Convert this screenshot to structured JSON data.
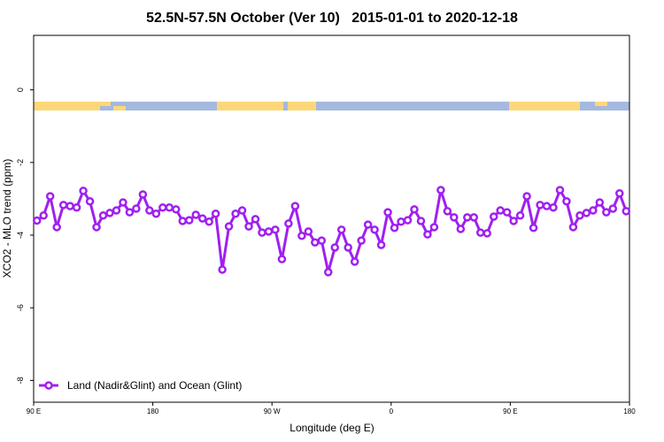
{
  "chart_data": {
    "type": "line",
    "title": "52.5N-57.5N October (Ver 10)   2015-01-01 to 2020-12-18",
    "x_label": "Longitude (deg E)",
    "y_label": "XCO2 - MLO trend (ppm)",
    "x": [
      92.5,
      97.5,
      102.5,
      107.5,
      112.5,
      117.5,
      122.5,
      127.5,
      132.5,
      137.5,
      142.5,
      147.5,
      152.5,
      157.5,
      162.5,
      167.5,
      172.5,
      177.5,
      182.5,
      187.5,
      192.5,
      197.5,
      202.5,
      207.5,
      212.5,
      217.5,
      222.5,
      227.5,
      232.5,
      237.5,
      242.5,
      247.5,
      252.5,
      257.5,
      262.5,
      267.5,
      272.5,
      277.5,
      282.5,
      287.5,
      292.5,
      297.5,
      302.5,
      307.5,
      312.5,
      317.5,
      322.5,
      327.5,
      332.5,
      337.5,
      342.5,
      347.5,
      352.5,
      357.5,
      362.5,
      367.5,
      372.5,
      377.5,
      382.5,
      387.5,
      392.5,
      397.5,
      402.5,
      407.5,
      412.5,
      417.5,
      422.5,
      427.5,
      432.5,
      437.5,
      442.5,
      447.5,
      452.5,
      457.5,
      462.5,
      467.5,
      472.5,
      477.5,
      482.5,
      487.5,
      492.5,
      497.5,
      502.5,
      507.5,
      512.5,
      517.5,
      522.5,
      527.5,
      532.5,
      537.5
    ],
    "series": [
      {
        "name": "Land (Nadir&Glint) and Ocean (Glint)",
        "color": "#a020f0",
        "values": [
          -3.6,
          -3.46,
          -2.93,
          -3.78,
          -3.17,
          -3.2,
          -3.24,
          -2.78,
          -3.07,
          -3.78,
          -3.46,
          -3.39,
          -3.32,
          -3.1,
          -3.37,
          -3.27,
          -2.88,
          -3.32,
          -3.41,
          -3.24,
          -3.24,
          -3.29,
          -3.61,
          -3.59,
          -3.44,
          -3.54,
          -3.63,
          -3.41,
          -4.95,
          -3.76,
          -3.41,
          -3.32,
          -3.76,
          -3.56,
          -3.93,
          -3.9,
          -3.85,
          -4.66,
          -3.68,
          -3.2,
          -4.02,
          -3.9,
          -4.2,
          -4.15,
          -5.02,
          -4.34,
          -3.85,
          -4.34,
          -4.73,
          -4.15,
          -3.71,
          -3.85,
          -4.27,
          -3.37,
          -3.8,
          -3.63,
          -3.59,
          -3.29,
          -3.61,
          -3.98,
          -3.78,
          -2.76,
          -3.34,
          -3.51,
          -3.83,
          -3.51,
          -3.51,
          -3.93,
          -3.95,
          -3.49,
          -3.32,
          -3.37,
          -3.61,
          -3.46,
          -2.93,
          -3.8,
          -3.17,
          -3.2,
          -3.24,
          -2.76,
          -3.07,
          -3.78,
          -3.46,
          -3.39,
          -3.32,
          -3.1,
          -3.37,
          -3.27,
          -2.85,
          -3.34
        ]
      }
    ],
    "xlim": [
      90,
      540
    ],
    "xticks": [
      {
        "value": 90,
        "label": "90 E"
      },
      180,
      {
        "value": 270,
        "label": "90 W"
      },
      {
        "value": 360,
        "label": "0"
      },
      {
        "value": 450,
        "label": "90 E"
      },
      {
        "value": 540,
        "label": "180"
      }
    ],
    "ylim": [
      -8.6,
      1.5
    ],
    "yticks": [
      0,
      -2,
      -4,
      -6,
      -8
    ],
    "legend": "bottom-left"
  }
}
